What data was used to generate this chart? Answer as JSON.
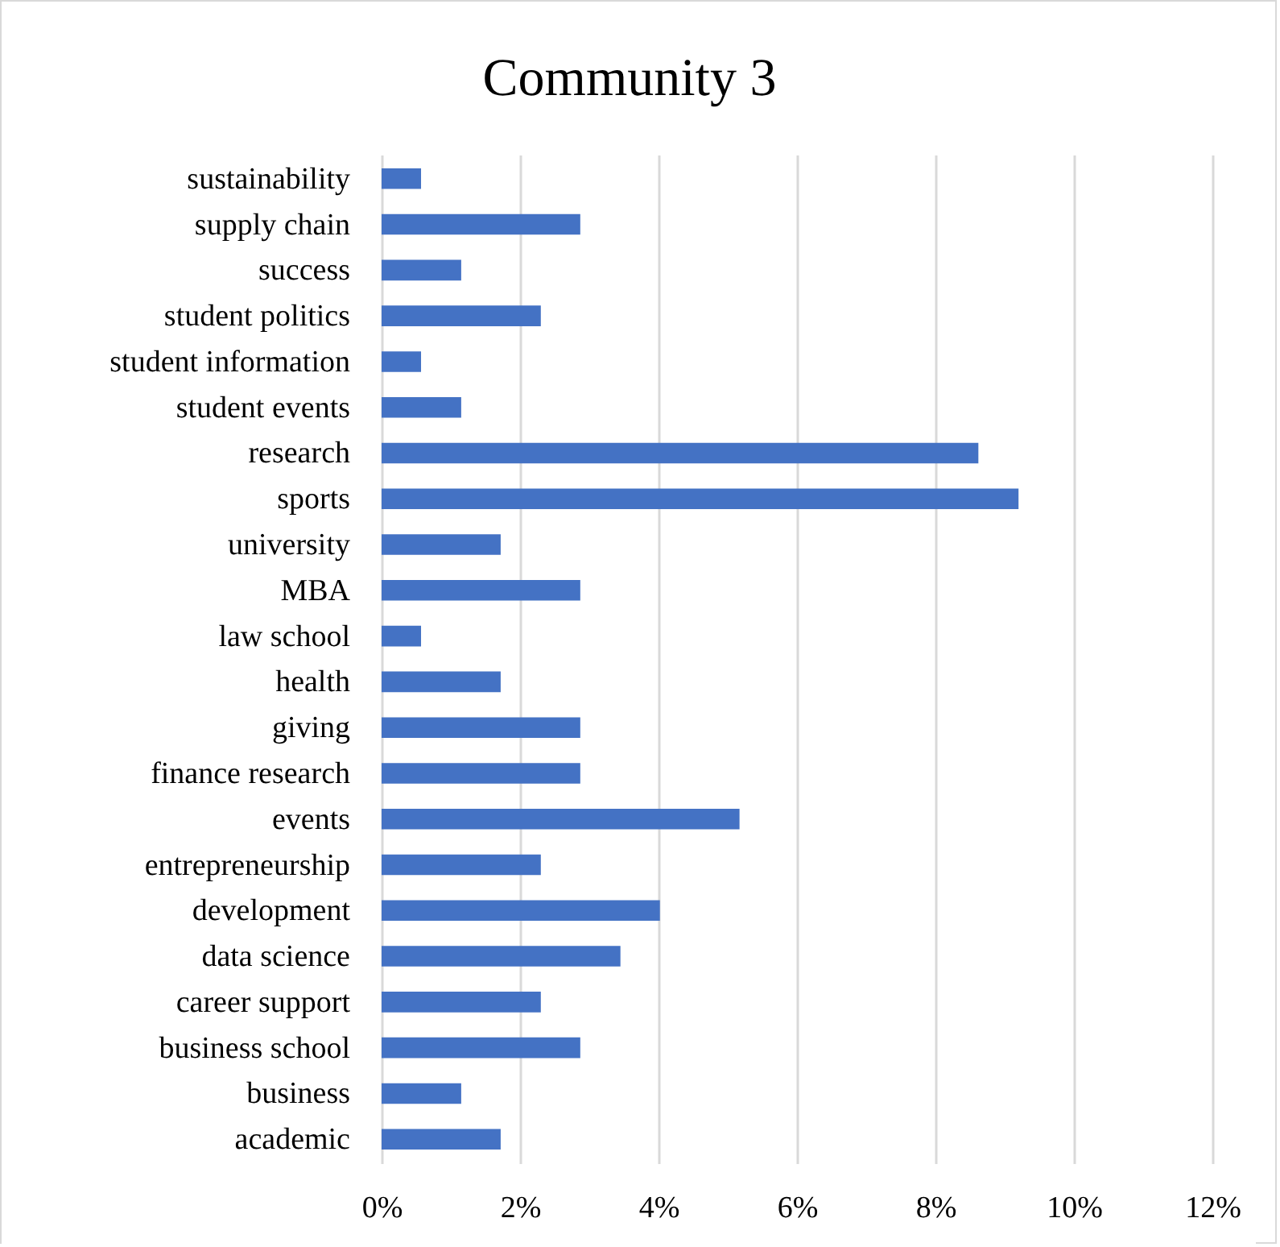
{
  "chart_data": {
    "type": "bar",
    "orientation": "horizontal",
    "title": "Community 3",
    "categories": [
      "sustainability",
      "supply chain",
      "success",
      "student politics",
      "student information",
      "student events",
      "research",
      "sports",
      "university",
      "MBA",
      "law school",
      "health",
      "giving",
      "finance research",
      "events",
      "entrepreneurship",
      "development",
      "data science",
      "career support",
      "business school",
      "business",
      "academic"
    ],
    "values": [
      0.57,
      2.87,
      1.15,
      2.3,
      0.57,
      1.15,
      8.62,
      9.2,
      1.72,
      2.87,
      0.57,
      1.72,
      2.87,
      2.87,
      5.17,
      2.3,
      4.02,
      3.45,
      2.3,
      2.87,
      1.15,
      1.72
    ],
    "color": "#4472c4",
    "xlim": [
      0,
      12
    ],
    "xticks": [
      {
        "value": 0,
        "label": "0%"
      },
      {
        "value": 2,
        "label": "2%"
      },
      {
        "value": 4,
        "label": "4%"
      },
      {
        "value": 6,
        "label": "6%"
      },
      {
        "value": 8,
        "label": "8%"
      },
      {
        "value": 10,
        "label": "10%"
      },
      {
        "value": 12,
        "label": "12%"
      }
    ],
    "grid": "x"
  }
}
